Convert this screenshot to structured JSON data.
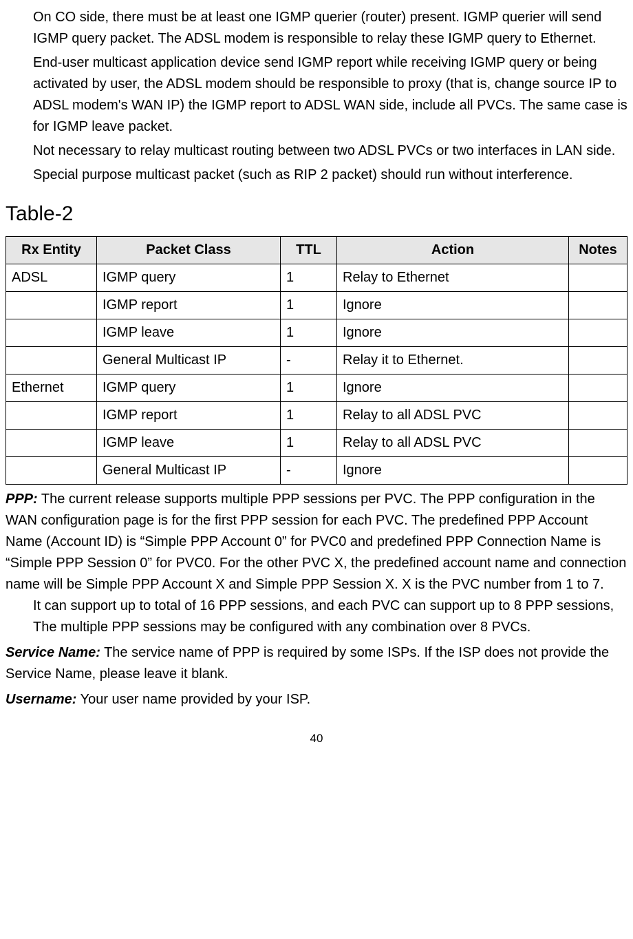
{
  "paragraphs": {
    "p1": "On CO side, there must be at least one IGMP querier (router) present. IGMP querier will send IGMP query packet. The ADSL modem is responsible to relay these IGMP query to Ethernet.",
    "p2": "End-user multicast application device send IGMP report while receiving IGMP query or being activated by user, the ADSL modem should be responsible to proxy (that is, change source IP to ADSL modem's WAN IP) the IGMP report to ADSL WAN side, include all PVCs. The same case is for IGMP leave packet.",
    "p3": "Not necessary to relay multicast routing between two ADSL PVCs or two interfaces in LAN side.",
    "p4": "Special purpose multicast packet (such as RIP 2 packet) should run without interference."
  },
  "table_title": "Table-2",
  "table": {
    "headers": {
      "rx": "Rx Entity",
      "class": "Packet Class",
      "ttl": "TTL",
      "action": "Action",
      "notes": "Notes"
    },
    "rows": [
      {
        "rx": "ADSL",
        "class": "IGMP query",
        "ttl": "1",
        "action": "Relay to Ethernet",
        "notes": ""
      },
      {
        "rx": "",
        "class": "IGMP report",
        "ttl": "1",
        "action": "Ignore",
        "notes": ""
      },
      {
        "rx": "",
        "class": "IGMP leave",
        "ttl": "1",
        "action": "Ignore",
        "notes": ""
      },
      {
        "rx": "",
        "class": "General Multicast IP",
        "ttl": "-",
        "action": "Relay it to Ethernet.",
        "notes": ""
      },
      {
        "rx": "Ethernet",
        "class": "IGMP query",
        "ttl": "1",
        "action": "Ignore",
        "notes": ""
      },
      {
        "rx": "",
        "class": "IGMP report",
        "ttl": "1",
        "action": "Relay to all ADSL PVC",
        "notes": ""
      },
      {
        "rx": "",
        "class": "IGMP leave",
        "ttl": "1",
        "action": "Relay to all ADSL PVC",
        "notes": ""
      },
      {
        "rx": "",
        "class": "General Multicast IP",
        "ttl": "-",
        "action": "Ignore",
        "notes": ""
      }
    ]
  },
  "defs": {
    "ppp": {
      "label": "PPP:",
      "body1": " The current release supports multiple PPP sessions per PVC. The PPP configuration in the WAN configuration page is for the first PPP session for each PVC. The predefined PPP Account Name (Account ID) is “Simple PPP Account 0” for PVC0 and predefined PPP Connection Name is “Simple PPP Session 0” for PVC0. For the other PVC X, the predefined account name and connection name will be Simple PPP Account X and Simple PPP Session X. X is the PVC number from 1 to 7.",
      "body2": "It can support up to total of 16 PPP sessions, and each PVC can support up to 8 PPP sessions, The multiple PPP sessions may be configured with any combination over 8 PVCs."
    },
    "service": {
      "label": "Service Name:",
      "body": " The service name of PPP is required by some ISPs. If the ISP does not provide the Service Name, please leave it blank."
    },
    "username": {
      "label": "Username:",
      "body": " Your user name provided by your ISP."
    }
  },
  "page_number": "40"
}
